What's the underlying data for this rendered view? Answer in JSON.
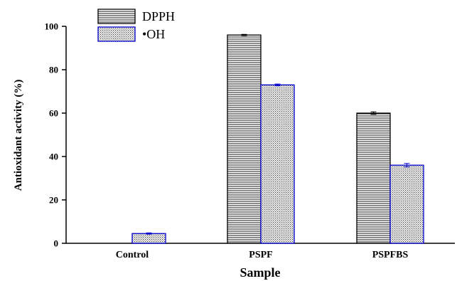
{
  "chart_data": {
    "type": "bar",
    "title": "",
    "xlabel": "Sample",
    "ylabel": "Antioxidant activity (%)",
    "categories": [
      "Control",
      "PSPF",
      "PSPFBS"
    ],
    "series": [
      {
        "name": "DPPH",
        "values": [
          0,
          96.0,
          60.0
        ],
        "errors": [
          0,
          0.3,
          0.6
        ],
        "pattern": "horizontal-lines",
        "color": "#000000"
      },
      {
        "name": "•OH",
        "values": [
          4.5,
          73.0,
          36.0
        ],
        "errors": [
          0.3,
          0.4,
          0.8
        ],
        "pattern": "dots",
        "color": "#0000cc"
      }
    ],
    "ylim": [
      0,
      100
    ],
    "yticks": [
      0,
      20,
      40,
      60,
      80,
      100
    ],
    "grid": false,
    "legend_position": "top-left"
  }
}
